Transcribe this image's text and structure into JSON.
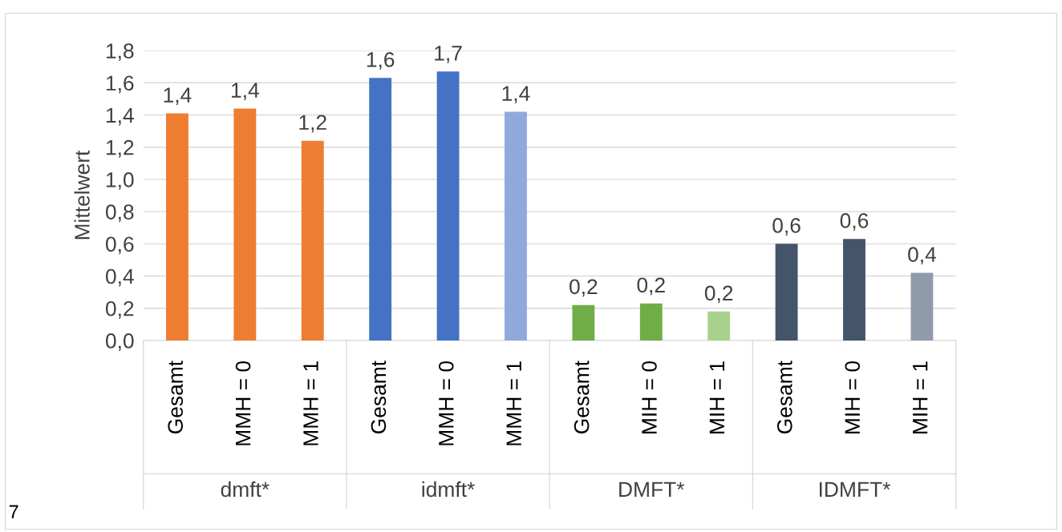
{
  "chart_data": {
    "type": "bar",
    "categories": [
      "Gesamt",
      "MMH = 0",
      "MMH = 1",
      "Gesamt",
      "MMH = 0",
      "MMH = 1",
      "Gesamt",
      "MIH = 0",
      "MIH = 1",
      "Gesamt",
      "MIH = 0",
      "MIH = 1"
    ],
    "values": [
      1.41,
      1.44,
      1.24,
      1.63,
      1.67,
      1.42,
      0.22,
      0.23,
      0.18,
      0.6,
      0.63,
      0.42
    ],
    "value_labels": [
      "1,4",
      "1,4",
      "1,2",
      "1,6",
      "1,7",
      "1,4",
      "0,2",
      "0,2",
      "0,2",
      "0,6",
      "0,6",
      "0,4"
    ],
    "colors": [
      "#ed7d31",
      "#ed7d31",
      "#ed7d31",
      "#4472c4",
      "#4472c4",
      "#8fa9dc",
      "#70ad47",
      "#70ad47",
      "#a9d18e",
      "#44546a",
      "#44546a",
      "#8f9aaa"
    ],
    "ylabel": "Mittelwert",
    "ylim": [
      0,
      1.8
    ],
    "yticks": [
      {
        "value": 0,
        "label": "0,0"
      },
      {
        "value": 0.2,
        "label": "0,2"
      },
      {
        "value": 0.4,
        "label": "0,4"
      },
      {
        "value": 0.6,
        "label": "0,6"
      },
      {
        "value": 0.8,
        "label": "0,8"
      },
      {
        "value": 1.0,
        "label": "1,0"
      },
      {
        "value": 1.2,
        "label": "1,2"
      },
      {
        "value": 1.4,
        "label": "1,4"
      },
      {
        "value": 1.6,
        "label": "1,6"
      },
      {
        "value": 1.8,
        "label": "1,8"
      }
    ],
    "grid": "y",
    "legend": false,
    "annotations": [
      "dmft*",
      "idmft*",
      "DMFT*",
      "IDMFT*",
      "7"
    ]
  }
}
